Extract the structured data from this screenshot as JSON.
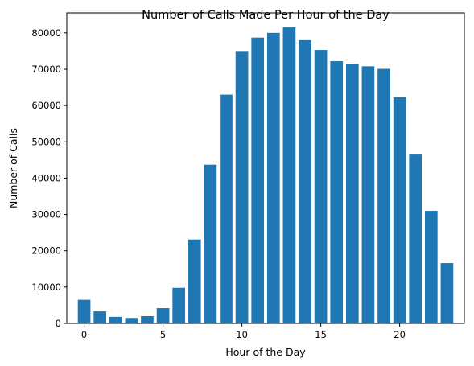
{
  "chart_data": {
    "type": "bar",
    "title": "Number of Calls Made Per Hour of the Day",
    "xlabel": "Hour of the Day",
    "ylabel": "Number of Calls",
    "x": [
      0,
      1,
      2,
      3,
      4,
      5,
      6,
      7,
      8,
      9,
      10,
      11,
      12,
      13,
      14,
      15,
      16,
      17,
      18,
      19,
      20,
      21,
      22,
      23
    ],
    "values": [
      6500,
      3300,
      1800,
      1500,
      2000,
      4200,
      9800,
      23100,
      43700,
      63000,
      74800,
      78700,
      80000,
      81500,
      78000,
      75300,
      72200,
      71500,
      70800,
      70100,
      62300,
      46500,
      31000,
      16600
    ],
    "xlim": [
      -1.1,
      24.1
    ],
    "ylim": [
      0,
      85500
    ],
    "xticks": [
      0,
      5,
      10,
      15,
      20
    ],
    "yticks": [
      0,
      10000,
      20000,
      30000,
      40000,
      50000,
      60000,
      70000,
      80000
    ],
    "bar_color": "#1f77b4",
    "grid": false,
    "legend": "none"
  }
}
